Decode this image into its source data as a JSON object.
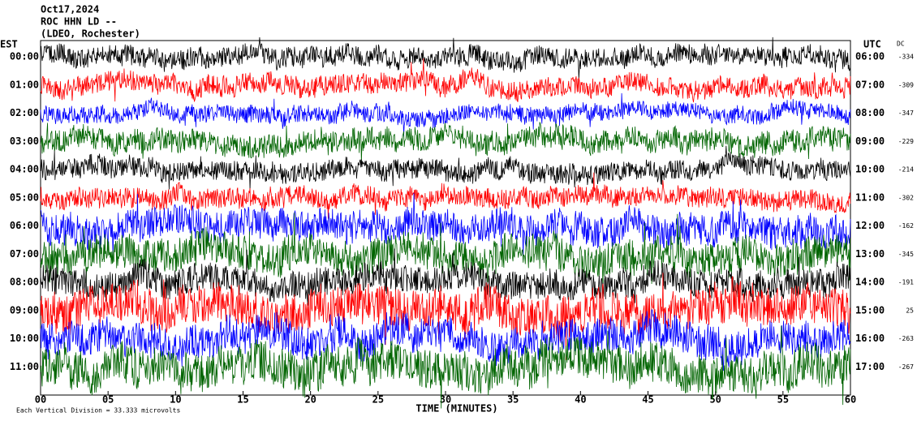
{
  "chart_data": {
    "type": "helicorder",
    "title": "Oct17,2024",
    "subtitle": "ROC HHN LD --",
    "location": "(LDEO, Rochester)",
    "left_axis_label": "EST",
    "right_axis_label": "UTC",
    "dc_label": "DC",
    "xlabel": "TIME (MINUTES)",
    "footnote": "Each Vertical Division =  33.333 microvolts",
    "xlim": [
      0,
      60
    ],
    "xticks": [
      {
        "value": 0,
        "label": "00"
      },
      {
        "value": 5,
        "label": "05"
      },
      10,
      15,
      20,
      25,
      30,
      35,
      40,
      45,
      50,
      55,
      60
    ],
    "rows": [
      {
        "est": "00:00",
        "utc": "06:00",
        "dc": -334,
        "color": "#000000",
        "amplitude": 0.35
      },
      {
        "est": "01:00",
        "utc": "07:00",
        "dc": -309,
        "color": "#ff0000",
        "amplitude": 0.35
      },
      {
        "est": "02:00",
        "utc": "08:00",
        "dc": -347,
        "color": "#0000ff",
        "amplitude": 0.3
      },
      {
        "est": "03:00",
        "utc": "09:00",
        "dc": -229,
        "color": "#006400",
        "amplitude": 0.4
      },
      {
        "est": "04:00",
        "utc": "10:00",
        "dc": -214,
        "color": "#000000",
        "amplitude": 0.35
      },
      {
        "est": "05:00",
        "utc": "11:00",
        "dc": -302,
        "color": "#ff0000",
        "amplitude": 0.35
      },
      {
        "est": "06:00",
        "utc": "12:00",
        "dc": -162,
        "color": "#0000ff",
        "amplitude": 0.55
      },
      {
        "est": "07:00",
        "utc": "13:00",
        "dc": -345,
        "color": "#006400",
        "amplitude": 0.6
      },
      {
        "est": "08:00",
        "utc": "14:00",
        "dc": -191,
        "color": "#000000",
        "amplitude": 0.5
      },
      {
        "est": "09:00",
        "utc": "15:00",
        "dc": 25,
        "color": "#ff0000",
        "amplitude": 0.7
      },
      {
        "est": "10:00",
        "utc": "16:00",
        "dc": -263,
        "color": "#0000ff",
        "amplitude": 0.6
      },
      {
        "est": "11:00",
        "utc": "17:00",
        "dc": -267,
        "color": "#006400",
        "amplitude": 0.7
      }
    ]
  }
}
